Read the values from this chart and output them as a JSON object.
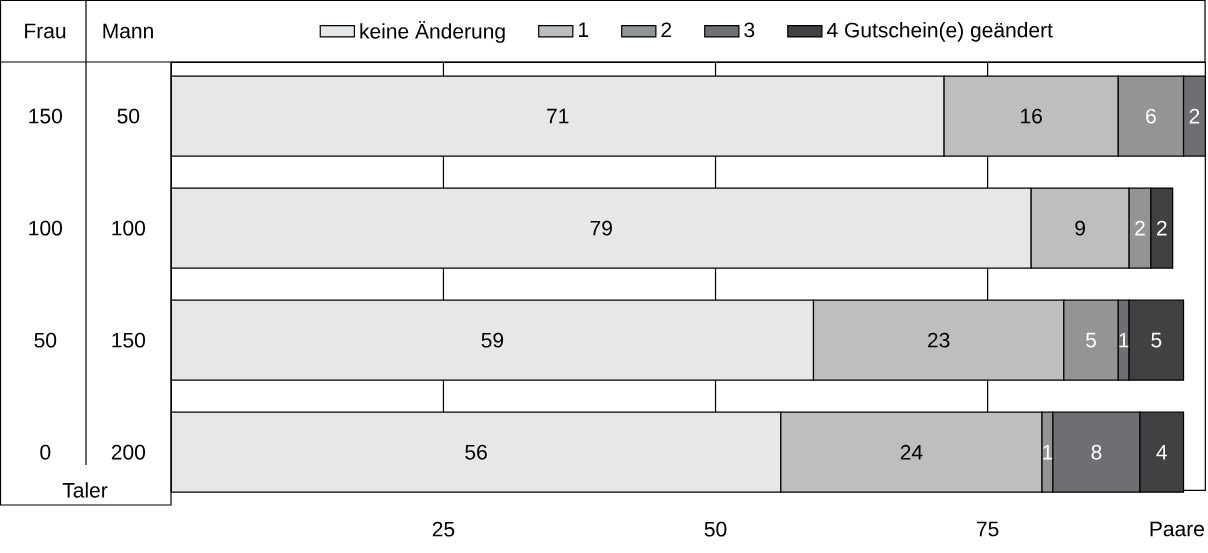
{
  "chart_data": {
    "type": "bar",
    "orientation": "horizontal",
    "stacked": true,
    "categories": [
      "150",
      "100",
      "50",
      "0"
    ],
    "xlabel": "Paare",
    "ylabel": "Taler",
    "xlim": [
      0,
      95
    ],
    "xticks": [
      25,
      50,
      75
    ],
    "grid": "x",
    "legend": "top",
    "data_labels": true,
    "series": [
      {
        "name": "keine Änderung",
        "color": "#e6e7e9",
        "values": [
          71,
          79,
          59,
          56
        ]
      },
      {
        "name": "1",
        "color": "#bdbec0",
        "values": [
          16,
          9,
          23,
          24
        ]
      },
      {
        "name": "2",
        "color": "#939496",
        "values": [
          6,
          2,
          5,
          1
        ]
      },
      {
        "name": "3",
        "color": "#6e6f72",
        "values": [
          2,
          null,
          1,
          8
        ]
      },
      {
        "name": "4 Gutschein(e) geändert",
        "color": "#414143",
        "values": [
          null,
          2,
          5,
          4
        ]
      }
    ],
    "annotations": [
      "Frau",
      "Mann",
      "50",
      "100",
      "150",
      "200"
    ]
  }
}
